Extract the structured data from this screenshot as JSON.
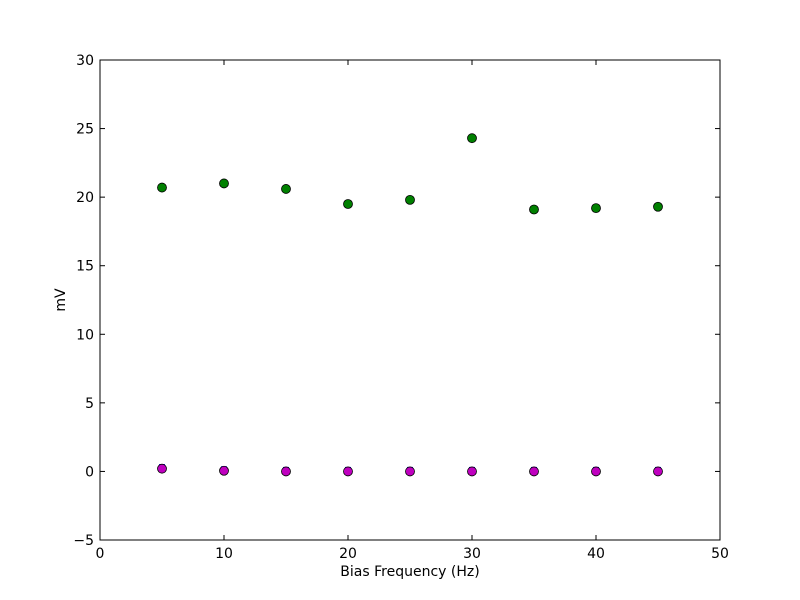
{
  "chart_data": {
    "type": "scatter",
    "title": "",
    "xlabel": "Bias Frequency (Hz)",
    "ylabel": "mV",
    "xlim": [
      0,
      50
    ],
    "ylim": [
      -5,
      30
    ],
    "xticks": [
      0,
      10,
      20,
      30,
      40,
      50
    ],
    "yticks": [
      -5,
      0,
      5,
      10,
      15,
      20,
      25,
      30
    ],
    "grid": false,
    "legend": "none",
    "series": [
      {
        "color": "#008000",
        "marker": "circle",
        "x": [
          5,
          10,
          15,
          20,
          25,
          30,
          35,
          40,
          45
        ],
        "y": [
          20.7,
          21.0,
          20.6,
          19.5,
          19.8,
          24.3,
          19.1,
          19.2,
          19.3
        ]
      },
      {
        "color": "#0000ff",
        "marker": "error-bar",
        "x": [
          5,
          10,
          15,
          20,
          25,
          30,
          35,
          40,
          45
        ],
        "y": [
          0.2,
          0.05,
          0.0,
          0.0,
          0.0,
          0.0,
          0.0,
          0.0,
          0.0
        ],
        "yerr": [
          0.3,
          0.05,
          0.02,
          0.02,
          0.02,
          0.02,
          0.02,
          0.02,
          0.02
        ]
      },
      {
        "color": "#bf00bf",
        "marker": "circle",
        "x": [
          5,
          10,
          15,
          20,
          25,
          30,
          35,
          40,
          45
        ],
        "y": [
          0.2,
          0.05,
          0.0,
          0.0,
          0.0,
          0.0,
          0.0,
          0.0,
          0.0
        ]
      }
    ]
  }
}
